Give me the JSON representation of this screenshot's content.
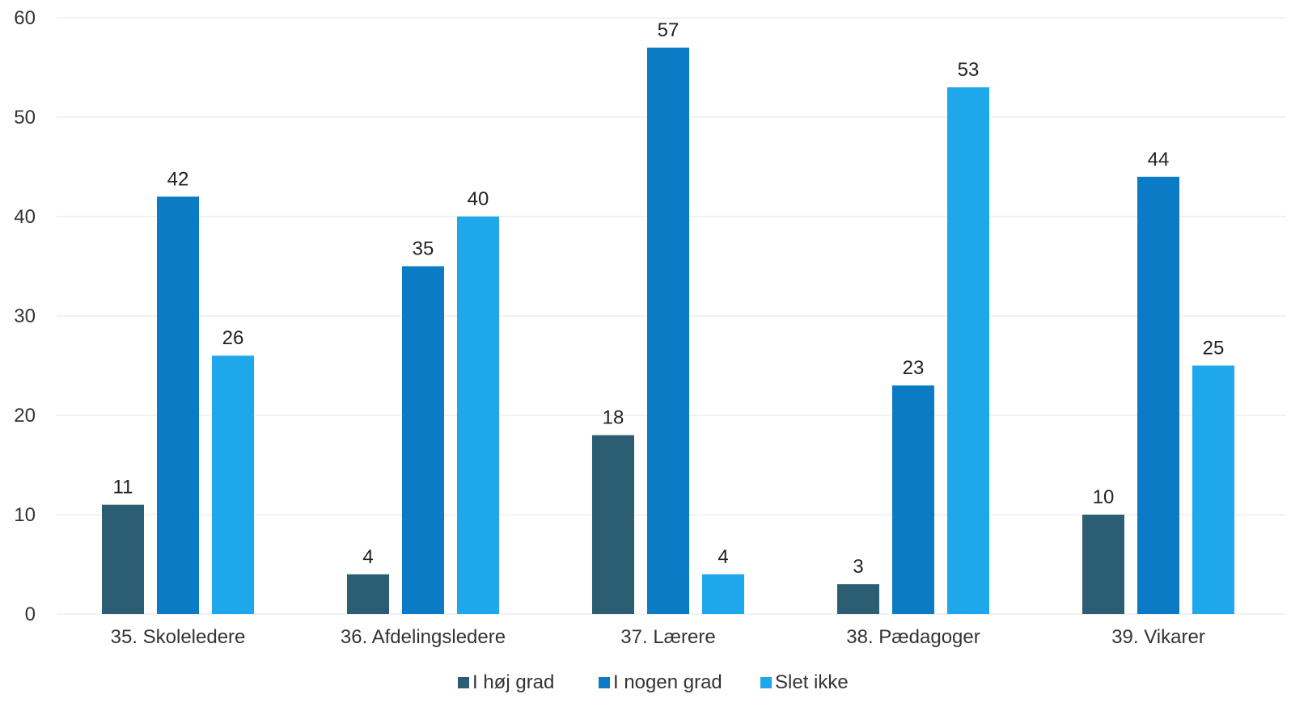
{
  "chart_data": {
    "type": "bar",
    "categories": [
      "35. Skoleledere",
      "36. Afdelingsledere",
      "37. Lærere",
      "38. Pædagoger",
      "39. Vikarer"
    ],
    "series": [
      {
        "name": "I høj grad",
        "color": "#2b5e73",
        "values": [
          11,
          4,
          18,
          3,
          10
        ]
      },
      {
        "name": "I nogen grad",
        "color": "#0b7bc5",
        "values": [
          42,
          35,
          57,
          23,
          44
        ]
      },
      {
        "name": "Slet ikke",
        "color": "#1ea8eb",
        "values": [
          26,
          40,
          4,
          53,
          25
        ]
      }
    ],
    "yticks": [
      "0",
      "10",
      "20",
      "30",
      "40",
      "50",
      "60"
    ],
    "ylim": [
      0,
      60
    ],
    "grid": true,
    "legend": "bottom",
    "title": "",
    "xlabel": "",
    "ylabel": ""
  }
}
